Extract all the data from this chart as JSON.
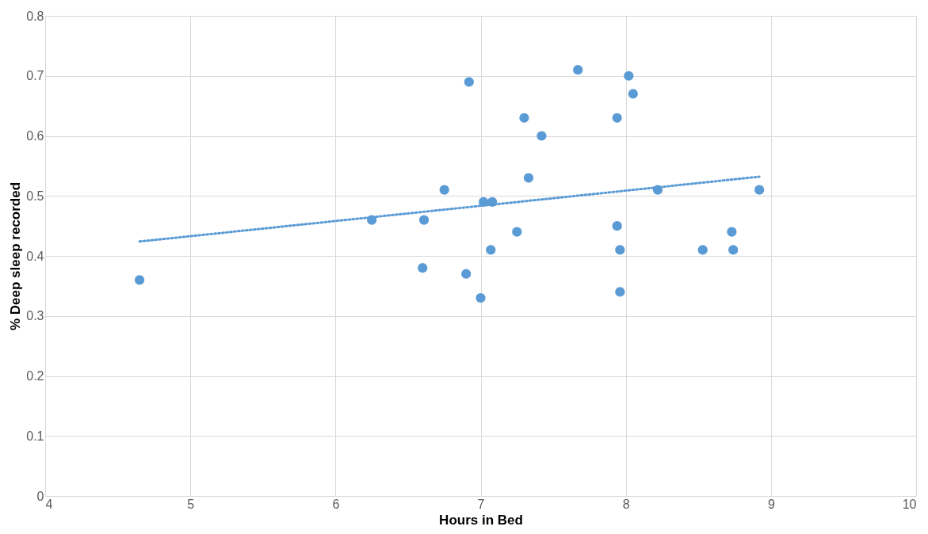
{
  "chart_data": {
    "type": "scatter",
    "xlabel": "Hours in Bed",
    "ylabel": "% Deep sleep recorded",
    "xlim": [
      4,
      10
    ],
    "xticks": [
      4,
      5,
      6,
      7,
      8,
      9,
      10
    ],
    "ylim": [
      0,
      0.8
    ],
    "yticks": [
      0,
      0.1,
      0.2,
      0.3,
      0.4,
      0.5,
      0.6,
      0.7,
      0.8
    ],
    "grid": true,
    "series": [
      {
        "marker": "circle",
        "color": "#5b9bd5",
        "x": [
          4.65,
          6.25,
          6.61,
          6.6,
          6.75,
          6.9,
          6.92,
          7.0,
          7.02,
          7.08,
          7.07,
          7.25,
          7.3,
          7.33,
          7.42,
          7.67,
          7.94,
          7.94,
          7.96,
          7.96,
          8.02,
          8.05,
          8.22,
          8.53,
          8.73,
          8.74,
          8.92
        ],
        "values": [
          0.36,
          0.46,
          0.46,
          0.38,
          0.51,
          0.37,
          0.69,
          0.33,
          0.49,
          0.49,
          0.41,
          0.44,
          0.63,
          0.53,
          0.6,
          0.71,
          0.63,
          0.45,
          0.41,
          0.34,
          0.7,
          0.67,
          0.51,
          0.41,
          0.44,
          0.41,
          0.51
        ]
      },
      {
        "type": "line",
        "color": "#5b9bd5",
        "line_style": "dotted",
        "x": [
          4.65,
          8.92
        ],
        "values": [
          0.424,
          0.532
        ]
      }
    ]
  }
}
